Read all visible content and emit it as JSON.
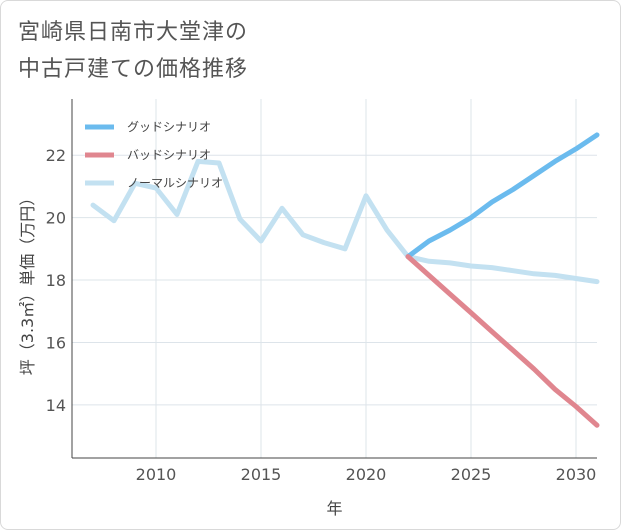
{
  "title_lines": [
    "宮崎県日南市大堂津の",
    "中古戸建ての価格推移"
  ],
  "chart_data": {
    "type": "line",
    "xlabel": "年",
    "ylabel": "坪（3.3㎡）単価（万円）",
    "xlim": [
      2006,
      2031
    ],
    "ylim": [
      12.3,
      23.8
    ],
    "x_ticks": [
      2010,
      2015,
      2020,
      2025,
      2030
    ],
    "y_ticks": [
      14,
      16,
      18,
      20,
      22
    ],
    "grid": true,
    "legend_position": "top-left",
    "series": [
      {
        "name": "グッドシナリオ",
        "color": "#6bbbee",
        "x": [
          2022,
          2023,
          2024,
          2025,
          2026,
          2027,
          2028,
          2029,
          2030,
          2031
        ],
        "y": [
          18.75,
          19.25,
          19.6,
          20.0,
          20.5,
          20.9,
          21.35,
          21.8,
          22.2,
          22.65
        ]
      },
      {
        "name": "バッドシナリオ",
        "color": "#e0868f",
        "x": [
          2022,
          2023,
          2024,
          2025,
          2026,
          2027,
          2028,
          2029,
          2030,
          2031
        ],
        "y": [
          18.75,
          18.15,
          17.55,
          16.95,
          16.35,
          15.75,
          15.15,
          14.5,
          13.95,
          13.35
        ]
      },
      {
        "name": "ノーマルシナリオ",
        "color": "#c3e1f1",
        "x": [
          2007,
          2008,
          2009,
          2010,
          2011,
          2012,
          2013,
          2014,
          2015,
          2016,
          2017,
          2018,
          2019,
          2020,
          2021,
          2022,
          2023,
          2024,
          2025,
          2026,
          2027,
          2028,
          2029,
          2030,
          2031
        ],
        "y": [
          20.4,
          19.9,
          21.1,
          20.95,
          20.1,
          21.8,
          21.75,
          19.95,
          19.25,
          20.3,
          19.45,
          19.2,
          19.0,
          20.7,
          19.6,
          18.75,
          18.6,
          18.55,
          18.45,
          18.4,
          18.3,
          18.2,
          18.15,
          18.05,
          17.95
        ]
      }
    ]
  }
}
